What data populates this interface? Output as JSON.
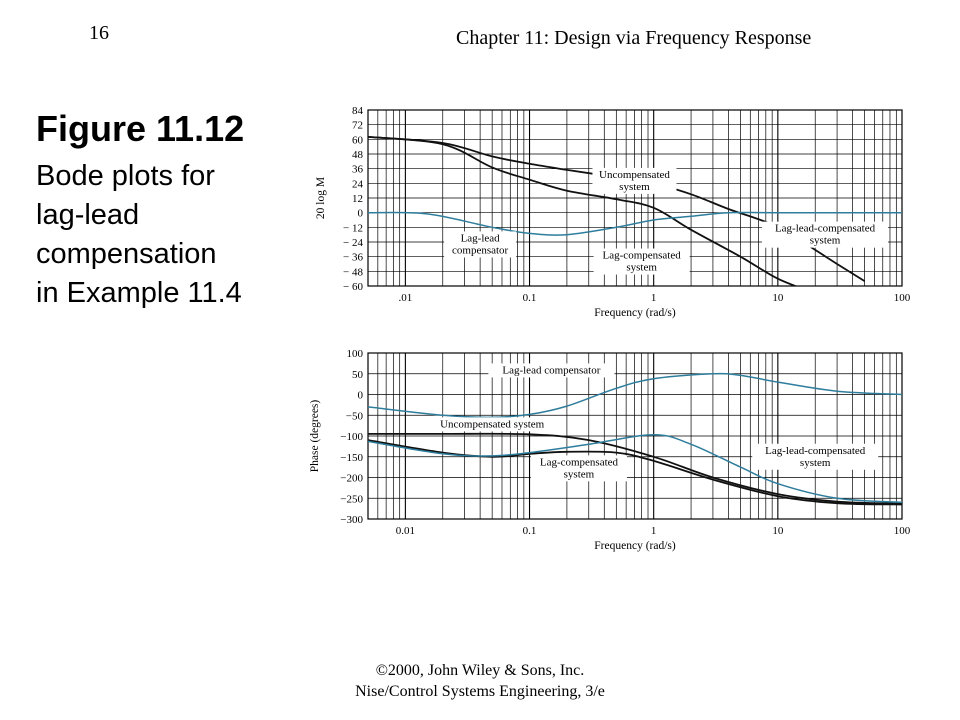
{
  "header": {
    "page_number": "16",
    "chapter_title": "Chapter 11: Design via Frequency Response"
  },
  "figure": {
    "title": "Figure 11.12",
    "caption_lines": [
      "Bode plots for",
      "lag-lead",
      "compensation",
      "in Example 11.4"
    ]
  },
  "footer": {
    "line1": "©2000, John Wiley & Sons, Inc.",
    "line2": "Nise/Control Systems Engineering, 3/e"
  },
  "colors": {
    "black_curve": "#111111",
    "blue_curve": "#2e7d9c",
    "grid": "#000000"
  },
  "chart_data": [
    {
      "type": "line",
      "xscale": "log",
      "xlim": [
        0.005,
        100
      ],
      "ylim": [
        -60,
        84
      ],
      "xlabel": "Frequency (rad/s)",
      "ylabel": "20 log M",
      "xticks": [
        0.01,
        0.1,
        1,
        10,
        100
      ],
      "xtick_labels": [
        ".01",
        "0.1",
        "1",
        "10",
        "100"
      ],
      "yticks": [
        84,
        72,
        60,
        48,
        36,
        24,
        12,
        0,
        -12,
        -24,
        -36,
        -48,
        -60
      ],
      "ytick_labels": [
        "84",
        "72",
        "60",
        "48",
        "36",
        "24",
        "12",
        "0",
        "− 12",
        "− 24",
        "− 36",
        "− 48",
        "− 60"
      ],
      "series": [
        {
          "color": "black",
          "points": [
            [
              0.005,
              62
            ],
            [
              0.02,
              57
            ],
            [
              0.05,
              46
            ],
            [
              0.1,
              40
            ],
            [
              0.2,
              35
            ],
            [
              0.5,
              29
            ],
            [
              1,
              24
            ],
            [
              2,
              15
            ],
            [
              4,
              3
            ],
            [
              10,
              -12
            ],
            [
              30,
              -42
            ],
            [
              50,
              -56
            ]
          ]
        },
        {
          "color": "black",
          "points": [
            [
              0.005,
              62
            ],
            [
              0.02,
              56
            ],
            [
              0.05,
              37
            ],
            [
              0.1,
              27
            ],
            [
              0.2,
              18
            ],
            [
              0.5,
              11
            ],
            [
              1,
              4
            ],
            [
              2,
              -14
            ],
            [
              5,
              -36
            ],
            [
              10,
              -54
            ],
            [
              20,
              -66
            ]
          ]
        },
        {
          "color": "blue",
          "points": [
            [
              0.005,
              0
            ],
            [
              0.015,
              -1
            ],
            [
              0.05,
              -12
            ],
            [
              0.1,
              -17
            ],
            [
              0.2,
              -18
            ],
            [
              0.5,
              -12
            ],
            [
              1,
              -6
            ],
            [
              2,
              -3
            ],
            [
              4,
              0
            ],
            [
              10,
              0
            ],
            [
              100,
              0
            ]
          ]
        }
      ],
      "annotations": [
        {
          "lines": [
            "Uncompensated",
            "system"
          ],
          "x": 0.7,
          "y": 26
        },
        {
          "lines": [
            "Lag-lead",
            "compensator"
          ],
          "x": 0.04,
          "y": -26
        },
        {
          "lines": [
            "Lag-compensated",
            "system"
          ],
          "x": 0.8,
          "y": -40
        },
        {
          "lines": [
            "Lag-lead-compensated",
            "system"
          ],
          "x": 24,
          "y": -18
        }
      ]
    },
    {
      "type": "line",
      "xscale": "log",
      "xlim": [
        0.005,
        100
      ],
      "ylim": [
        -300,
        100
      ],
      "xlabel": "Frequency (rad/s)",
      "ylabel": "Phase (degrees)",
      "xticks": [
        0.01,
        0.1,
        1,
        10,
        100
      ],
      "xtick_labels": [
        "0.01",
        "0.1",
        "1",
        "10",
        "100"
      ],
      "yticks": [
        100,
        50,
        0,
        -50,
        -100,
        -150,
        -200,
        -250,
        -300
      ],
      "ytick_labels": [
        "100",
        "50",
        "0",
        "−50",
        "−100",
        "−150",
        "−200",
        "−250",
        "−300"
      ],
      "series": [
        {
          "color": "blue",
          "points": [
            [
              0.005,
              -30
            ],
            [
              0.02,
              -50
            ],
            [
              0.05,
              -55
            ],
            [
              0.1,
              -48
            ],
            [
              0.2,
              -28
            ],
            [
              0.5,
              15
            ],
            [
              1,
              38
            ],
            [
              3,
              50
            ],
            [
              5,
              46
            ],
            [
              10,
              30
            ],
            [
              30,
              8
            ],
            [
              100,
              0
            ]
          ]
        },
        {
          "color": "black",
          "points": [
            [
              0.005,
              -95
            ],
            [
              0.02,
              -95
            ],
            [
              0.1,
              -96
            ],
            [
              0.3,
              -110
            ],
            [
              1,
              -150
            ],
            [
              3,
              -200
            ],
            [
              10,
              -240
            ],
            [
              30,
              -258
            ],
            [
              100,
              -263
            ]
          ]
        },
        {
          "color": "black",
          "points": [
            [
              0.005,
              -110
            ],
            [
              0.02,
              -140
            ],
            [
              0.05,
              -150
            ],
            [
              0.1,
              -143
            ],
            [
              0.2,
              -138
            ],
            [
              0.5,
              -140
            ],
            [
              1,
              -160
            ],
            [
              3,
              -205
            ],
            [
              10,
              -245
            ],
            [
              30,
              -262
            ],
            [
              100,
              -265
            ]
          ]
        },
        {
          "color": "blue",
          "points": [
            [
              0.005,
              -113
            ],
            [
              0.02,
              -143
            ],
            [
              0.05,
              -148
            ],
            [
              0.1,
              -140
            ],
            [
              0.3,
              -120
            ],
            [
              1,
              -97
            ],
            [
              2,
              -120
            ],
            [
              5,
              -175
            ],
            [
              10,
              -215
            ],
            [
              30,
              -250
            ],
            [
              100,
              -260
            ]
          ]
        }
      ],
      "annotations": [
        {
          "lines": [
            "Lag-lead compensator"
          ],
          "x": 0.15,
          "y": 58
        },
        {
          "lines": [
            "Uncompensated system"
          ],
          "x": 0.05,
          "y": -72
        },
        {
          "lines": [
            "Lag-compensated",
            "system"
          ],
          "x": 0.25,
          "y": -178
        },
        {
          "lines": [
            "Lag-lead-compensated",
            "system"
          ],
          "x": 20,
          "y": -150
        }
      ]
    }
  ]
}
